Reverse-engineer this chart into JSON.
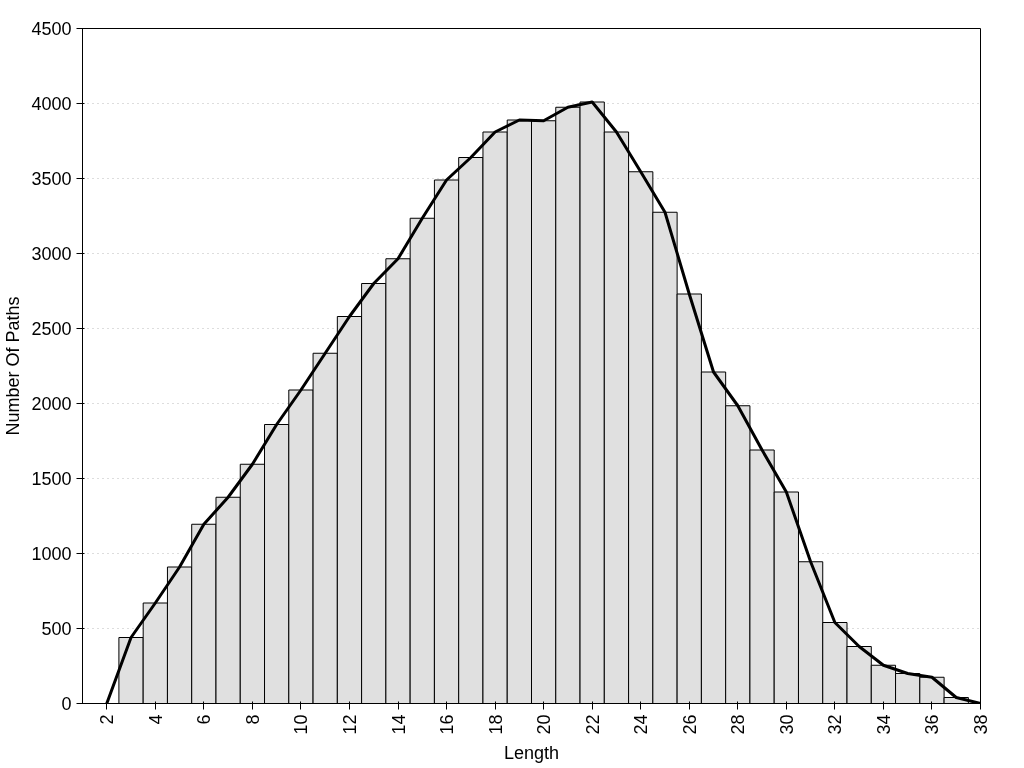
{
  "chart_data": {
    "type": "histogram",
    "xlabel": "Length",
    "ylabel": "Number Of Paths",
    "bins": [
      2.5,
      3.5,
      4.5,
      5.5,
      6.5,
      7.5,
      8.5,
      9.5,
      10.5,
      11.5,
      12.5,
      13.5,
      14.5,
      15.5,
      16.5,
      17.5,
      18.5,
      19.5,
      20.5,
      21.5,
      22.5,
      23.5,
      24.5,
      25.5,
      26.5,
      27.5,
      28.5,
      29.5,
      30.5,
      31.5,
      32.5,
      33.5,
      34.5,
      35.5,
      36.5,
      37.5
    ],
    "values": [
      440,
      670,
      910,
      1195,
      1375,
      1595,
      1860,
      2090,
      2335,
      2580,
      2800,
      2965,
      3235,
      3490,
      3640,
      3810,
      3890,
      3885,
      3975,
      4010,
      3810,
      3545,
      3275,
      2730,
      2210,
      1985,
      1690,
      1410,
      945,
      540,
      380,
      255,
      200,
      175,
      40
    ],
    "color": "#e0e0e0",
    "series": [
      {
        "type": "line",
        "color": "#000000",
        "x": [
          2,
          3,
          4,
          5,
          6,
          7,
          8,
          9,
          10,
          11,
          12,
          13,
          14,
          15,
          16,
          17,
          18,
          19,
          20,
          21,
          22,
          23,
          24,
          25,
          26,
          27,
          28,
          29,
          30,
          31,
          32,
          33,
          34,
          35,
          36,
          37,
          38
        ],
        "values": [
          0,
          440,
          670,
          910,
          1195,
          1375,
          1595,
          1860,
          2090,
          2335,
          2580,
          2800,
          2965,
          3235,
          3490,
          3640,
          3810,
          3890,
          3885,
          3975,
          4010,
          3810,
          3545,
          3275,
          2730,
          2210,
          1985,
          1690,
          1410,
          945,
          540,
          380,
          255,
          200,
          175,
          40,
          0
        ]
      }
    ],
    "xlim": [
      1,
      38
    ],
    "ylim": [
      0,
      4500
    ],
    "xticks": [
      2,
      4,
      6,
      8,
      10,
      12,
      14,
      16,
      18,
      20,
      22,
      24,
      26,
      28,
      30,
      32,
      34,
      36,
      38
    ],
    "yticks": [
      0,
      500,
      1000,
      1500,
      2000,
      2500,
      3000,
      3500,
      4000,
      4500
    ],
    "grid": "y",
    "line_style": "solid",
    "marker": "none"
  }
}
